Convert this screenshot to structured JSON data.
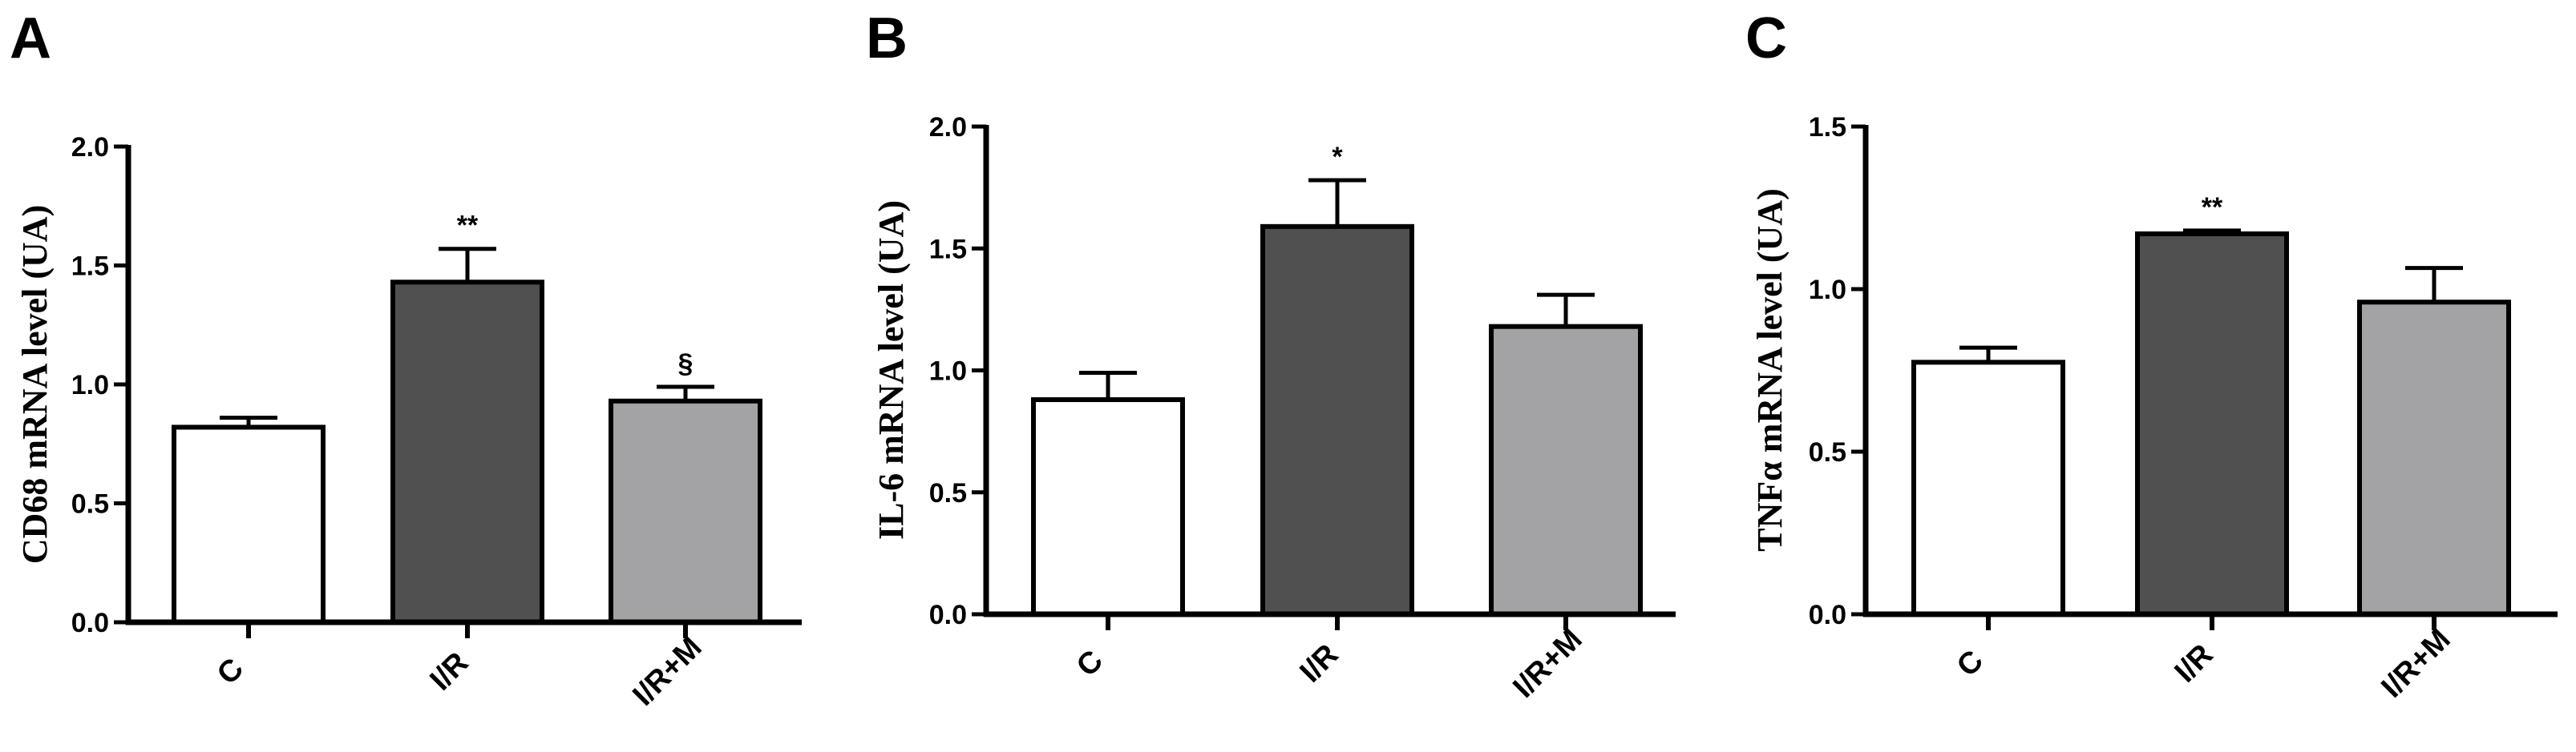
{
  "chart_data": [
    {
      "type": "bar",
      "panel": "A",
      "ylabel": "CD68 mRNA level (UA)",
      "categories": [
        "C",
        "I/R",
        "I/R+M"
      ],
      "values": [
        0.82,
        1.43,
        0.93
      ],
      "errors": [
        0.04,
        0.14,
        0.06
      ],
      "annotations": [
        "",
        "**",
        "§"
      ],
      "ylim": [
        0,
        2.0
      ],
      "yticks": [
        "0.0",
        "0.5",
        "1.0",
        "1.5",
        "2.0"
      ],
      "colors": [
        "#ffffff",
        "#505050",
        "#a3a3a6"
      ]
    },
    {
      "type": "bar",
      "panel": "B",
      "ylabel": "IL-6 mRNA level (UA)",
      "categories": [
        "C",
        "I/R",
        "I/R+M"
      ],
      "values": [
        0.88,
        1.59,
        1.18
      ],
      "errors": [
        0.11,
        0.19,
        0.13
      ],
      "annotations": [
        "",
        "*",
        ""
      ],
      "ylim": [
        0,
        2.0
      ],
      "yticks": [
        "0.0",
        "0.5",
        "1.0",
        "1.5",
        "2.0"
      ],
      "colors": [
        "#ffffff",
        "#505050",
        "#a3a3a6"
      ]
    },
    {
      "type": "bar",
      "panel": "C",
      "ylabel": "TNFα mRNA level (UA)",
      "categories": [
        "C",
        "I/R",
        "I/R+M"
      ],
      "values": [
        0.775,
        1.17,
        0.96
      ],
      "errors": [
        0.045,
        0.01,
        0.105
      ],
      "annotations": [
        "",
        "**",
        ""
      ],
      "ylim": [
        0,
        1.5
      ],
      "yticks": [
        "0.0",
        "0.5",
        "1.0",
        "1.5"
      ],
      "colors": [
        "#ffffff",
        "#505050",
        "#a3a3a6"
      ]
    }
  ]
}
